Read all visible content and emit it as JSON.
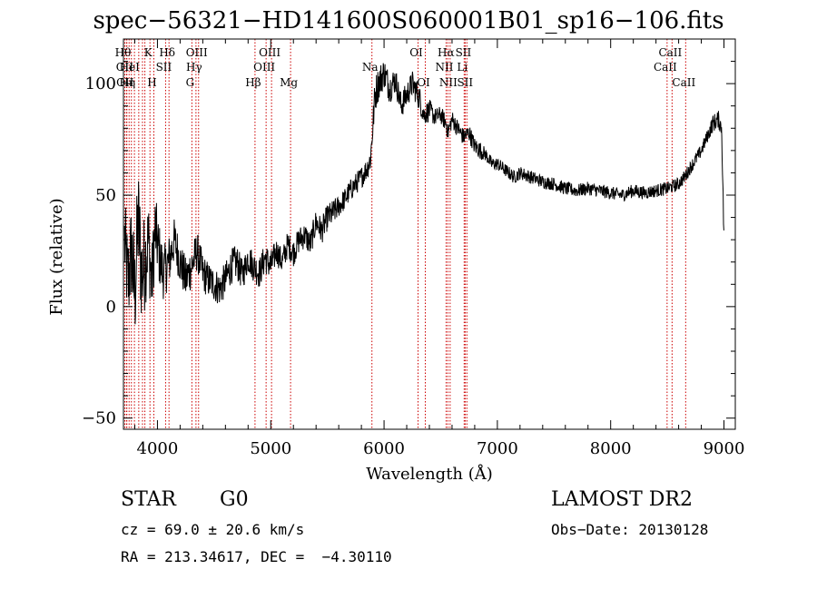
{
  "chart_data": {
    "type": "line",
    "title": "spec−56321−HD141600S060001B01_sp16−106.fits",
    "xlabel": "Wavelength (Å)",
    "ylabel": "Flux (relative)",
    "xlim": [
      3700,
      9100
    ],
    "ylim": [
      -55,
      120
    ],
    "x_ticks": [
      4000,
      5000,
      6000,
      7000,
      8000,
      9000
    ],
    "x_tick_labels": [
      "4000",
      "5000",
      "6000",
      "7000",
      "8000",
      "9000"
    ],
    "y_ticks": [
      -50,
      0,
      50,
      100
    ],
    "y_tick_labels": [
      "−50",
      "0",
      "50",
      "100"
    ],
    "grid": false,
    "series": [
      {
        "color": "#000000",
        "x": [
          3710,
          3740,
          3770,
          3800,
          3830,
          3860,
          3890,
          3920,
          3950,
          3980,
          4010,
          4050,
          4100,
          4150,
          4200,
          4250,
          4300,
          4350,
          4400,
          4450,
          4500,
          4550,
          4600,
          4650,
          4700,
          4750,
          4800,
          4850,
          4900,
          4950,
          5000,
          5050,
          5100,
          5150,
          5200,
          5250,
          5300,
          5350,
          5400,
          5450,
          5500,
          5550,
          5600,
          5650,
          5700,
          5750,
          5800,
          5850,
          5880,
          5900,
          5920,
          5950,
          6000,
          6050,
          6100,
          6150,
          6200,
          6250,
          6300,
          6320,
          6350,
          6400,
          6450,
          6500,
          6550,
          6563,
          6600,
          6650,
          6700,
          6750,
          6800,
          6850,
          6900,
          6950,
          7000,
          7050,
          7100,
          7150,
          7200,
          7300,
          7400,
          7500,
          7600,
          7700,
          7800,
          7900,
          8000,
          8100,
          8200,
          8300,
          8400,
          8500,
          8550,
          8600,
          8650,
          8700,
          8750,
          8800,
          8850,
          8900,
          8950,
          8980,
          9000
        ],
        "y": [
          30,
          10,
          25,
          5,
          40,
          15,
          20,
          30,
          10,
          35,
          25,
          15,
          20,
          30,
          20,
          12,
          18,
          25,
          15,
          12,
          10,
          8,
          12,
          18,
          20,
          14,
          22,
          18,
          15,
          22,
          18,
          25,
          20,
          28,
          24,
          30,
          32,
          28,
          38,
          34,
          40,
          42,
          45,
          48,
          52,
          55,
          58,
          62,
          66,
          80,
          95,
          100,
          105,
          98,
          102,
          90,
          95,
          100,
          95,
          92,
          86,
          88,
          85,
          86,
          82,
          78,
          84,
          80,
          76,
          78,
          72,
          70,
          68,
          64,
          64,
          62,
          60,
          58,
          60,
          58,
          56,
          55,
          53,
          52,
          53,
          52,
          51,
          50,
          52,
          51,
          52,
          53,
          54,
          55,
          58,
          62,
          66,
          70,
          76,
          82,
          84,
          80,
          30
        ],
        "noise": [
          20,
          22,
          24,
          25,
          25,
          25,
          22,
          20,
          18,
          16,
          15,
          12,
          12,
          10,
          10,
          10,
          10,
          9,
          9,
          8,
          8,
          8,
          8,
          8,
          8,
          7,
          7,
          7,
          7,
          7,
          7,
          6,
          6,
          6,
          6,
          6,
          6,
          6,
          6,
          6,
          6,
          6,
          5,
          5,
          5,
          5,
          5,
          5,
          6,
          7,
          8,
          8,
          7,
          7,
          6,
          6,
          6,
          6,
          6,
          6,
          5,
          5,
          4,
          4,
          4,
          4,
          4,
          4,
          4,
          4,
          4,
          4,
          3,
          3,
          3,
          3,
          3,
          3,
          3,
          3,
          3,
          3,
          3,
          3,
          3,
          3,
          3,
          3,
          3,
          3,
          3,
          3,
          3,
          3,
          3,
          3,
          3,
          3,
          3,
          4,
          4,
          4,
          6
        ]
      }
    ],
    "lines": [
      {
        "x": 3712,
        "top": "Hθ",
        "row": 0
      },
      {
        "x": 3727,
        "top": "OII",
        "row": 1
      },
      {
        "x": 3730,
        "top": "OII",
        "row": 2
      },
      {
        "x": 3750,
        "top": "Hη",
        "row": 2
      },
      {
        "x": 3770,
        "top": "HeI",
        "row": 1
      },
      {
        "x": 3797,
        "top": "",
        "row": 0
      },
      {
        "x": 3835,
        "top": "",
        "row": 0
      },
      {
        "x": 3868,
        "top": "",
        "row": 0
      },
      {
        "x": 3889,
        "top": "",
        "row": 0
      },
      {
        "x": 3934,
        "top": "K",
        "row": 0
      },
      {
        "x": 3968,
        "top": "H",
        "row": 2
      },
      {
        "x": 4072,
        "top": "SII",
        "row": 1
      },
      {
        "x": 4102,
        "top": "Hδ",
        "row": 0
      },
      {
        "x": 4304,
        "top": "G",
        "row": 2
      },
      {
        "x": 4340,
        "top": "Hγ",
        "row": 1
      },
      {
        "x": 4363,
        "top": "OIII",
        "row": 0
      },
      {
        "x": 4861,
        "top": "Hβ",
        "row": 2
      },
      {
        "x": 4959,
        "top": "OIII",
        "row": 1
      },
      {
        "x": 5007,
        "top": "OIII",
        "row": 0
      },
      {
        "x": 5175,
        "top": "Mg",
        "row": 2
      },
      {
        "x": 5893,
        "top": "Na",
        "row": 1
      },
      {
        "x": 6300,
        "top": "OI",
        "row": 0
      },
      {
        "x": 6364,
        "top": "OI",
        "row": 2
      },
      {
        "x": 6548,
        "top": "NII",
        "row": 1
      },
      {
        "x": 6563,
        "top": "Hα",
        "row": 0
      },
      {
        "x": 6583,
        "top": "NII",
        "row": 2
      },
      {
        "x": 6707,
        "top": "Li",
        "row": 1
      },
      {
        "x": 6716,
        "top": "SII",
        "row": 0
      },
      {
        "x": 6731,
        "top": "SII",
        "row": 2
      },
      {
        "x": 8498,
        "top": "CaII",
        "row": 1
      },
      {
        "x": 8542,
        "top": "CaII",
        "row": 0
      },
      {
        "x": 8662,
        "top": "CaII",
        "row": 2
      }
    ]
  },
  "info": {
    "object_class": "STAR",
    "subclass": "G0",
    "survey": "LAMOST DR2",
    "cz": "cz = 69.0 ± 20.6 km/s",
    "obs_date": "Obs−Date: 20130128",
    "coords": "RA = 213.34617, DEC =  −4.30110"
  }
}
